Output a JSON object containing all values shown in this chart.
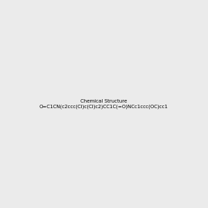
{
  "smiles": "O=C1CN(c2ccc(Cl)c(Cl)c2)CC1C(=O)NCc1ccc(OC)cc1",
  "background_color": "#ebebeb",
  "figsize": [
    3.0,
    3.0
  ],
  "dpi": 100,
  "bond_color": "#000000",
  "bond_width": 1.5,
  "atom_colors": {
    "O": "#ff0000",
    "N": "#0000ff",
    "Cl": "#00aa00",
    "C": "#000000",
    "H": "#777777"
  },
  "font_size": 7
}
